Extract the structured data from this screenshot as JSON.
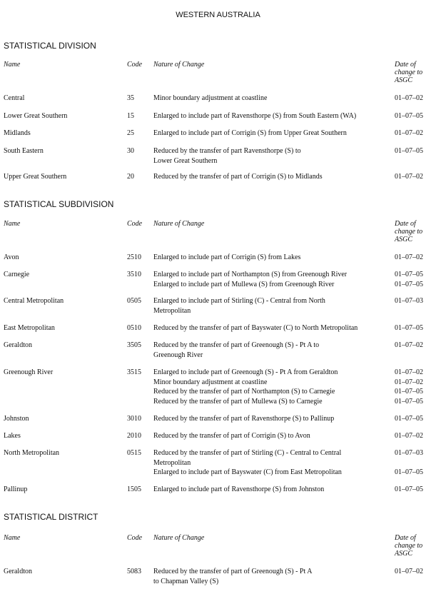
{
  "title": "WESTERN AUSTRALIA",
  "columns": {
    "name": "Name",
    "code": "Code",
    "nature": "Nature of Change",
    "date": [
      "Date of",
      "change to",
      "ASGC"
    ]
  },
  "sections": [
    {
      "heading": "STATISTICAL DIVISION",
      "rows": [
        {
          "name": "Central",
          "code": "35",
          "changes": [
            {
              "lines": [
                "Minor boundary adjustment at coastline"
              ],
              "date": "01–07–02"
            }
          ]
        },
        {
          "name": "Lower Great Southern",
          "code": "15",
          "changes": [
            {
              "lines": [
                "Enlarged to include part of Ravensthorpe (S) from South Eastern (WA)"
              ],
              "date": "01–07–05"
            }
          ]
        },
        {
          "name": "Midlands",
          "code": "25",
          "changes": [
            {
              "lines": [
                "Enlarged to include part of Corrigin (S) from Upper Great Southern"
              ],
              "date": "01–07–02"
            }
          ]
        },
        {
          "name": "South Eastern",
          "code": "30",
          "changes": [
            {
              "lines": [
                "Reduced by the transfer of part Ravensthorpe (S) to",
                "Lower Great Southern"
              ],
              "date": "01–07–05"
            }
          ]
        },
        {
          "name": "Upper Great Southern",
          "code": "20",
          "changes": [
            {
              "lines": [
                "Reduced by the transfer of part of Corrigin (S) to Midlands"
              ],
              "date": "01–07–02"
            }
          ]
        }
      ]
    },
    {
      "heading": "STATISTICAL SUBDIVISION",
      "rows": [
        {
          "name": "Avon",
          "code": "2510",
          "changes": [
            {
              "lines": [
                "Enlarged to include part of Corrigin (S) from Lakes"
              ],
              "date": "01–07–02"
            }
          ]
        },
        {
          "name": "Carnegie",
          "code": "3510",
          "changes": [
            {
              "lines": [
                "Enlarged to include part of Northampton (S) from Greenough River"
              ],
              "date": "01–07–05"
            },
            {
              "lines": [
                "Enlarged to include part of Mullewa (S) from Greenough River"
              ],
              "date": "01–07–05"
            }
          ]
        },
        {
          "name": "Central Metropolitan",
          "code": "0505",
          "changes": [
            {
              "lines": [
                "Enlarged to include part of Stirling (C) - Central from North",
                "Metropolitan"
              ],
              "date": "01–07–03"
            }
          ]
        },
        {
          "name": "East Metropolitan",
          "code": "0510",
          "changes": [
            {
              "lines": [
                "Reduced by the transfer of part of Bayswater (C) to North Metropolitan"
              ],
              "date": "01–07–05"
            }
          ]
        },
        {
          "name": "Geraldton",
          "code": "3505",
          "changes": [
            {
              "lines": [
                "Reduced by the transfer of part of Greenough (S) - Pt A to",
                "Greenough River"
              ],
              "date": "01–07–02"
            }
          ]
        },
        {
          "name": "Greenough River",
          "code": "3515",
          "changes": [
            {
              "lines": [
                "Enlarged to include part of Greenough (S) - Pt A from Geraldton"
              ],
              "date": "01–07–02"
            },
            {
              "lines": [
                "Minor boundary adjustment at coastline"
              ],
              "date": "01–07–02"
            },
            {
              "lines": [
                "Reduced by the transfer of part of Northampton (S) to Carnegie"
              ],
              "date": "01–07–05"
            },
            {
              "lines": [
                "Reduced by the transfer of part of Mullewa (S) to Carnegie"
              ],
              "date": "01–07–05"
            }
          ]
        },
        {
          "name": "Johnston",
          "code": "3010",
          "changes": [
            {
              "lines": [
                "Reduced by the transfer of part of Ravensthorpe (S) to Pallinup"
              ],
              "date": "01–07–05"
            }
          ]
        },
        {
          "name": "Lakes",
          "code": "2010",
          "changes": [
            {
              "lines": [
                "Reduced by the transfer of part of Corrigin (S) to Avon"
              ],
              "date": "01–07–02"
            }
          ]
        },
        {
          "name": "North Metropolitan",
          "code": "0515",
          "changes": [
            {
              "lines": [
                "Reduced by the transfer of part of Stirling (C) - Central to Central",
                "Metropolitan"
              ],
              "date": "01–07–03"
            },
            {
              "lines": [
                "Enlarged to include part of Bayswater (C) from East Metropolitan"
              ],
              "date": "01–07–05"
            }
          ]
        },
        {
          "name": "Pallinup",
          "code": "1505",
          "changes": [
            {
              "lines": [
                "Enlarged to include part of Ravensthorpe (S) from Johnston"
              ],
              "date": "01–07–05"
            }
          ]
        }
      ]
    },
    {
      "heading": "STATISTICAL DISTRICT",
      "rows": [
        {
          "name": "Geraldton",
          "code": "5083",
          "changes": [
            {
              "lines": [
                "Reduced by the transfer of part of Greenough (S) - Pt A",
                "to Chapman Valley (S)"
              ],
              "date": "01–07–02"
            }
          ]
        }
      ]
    }
  ]
}
